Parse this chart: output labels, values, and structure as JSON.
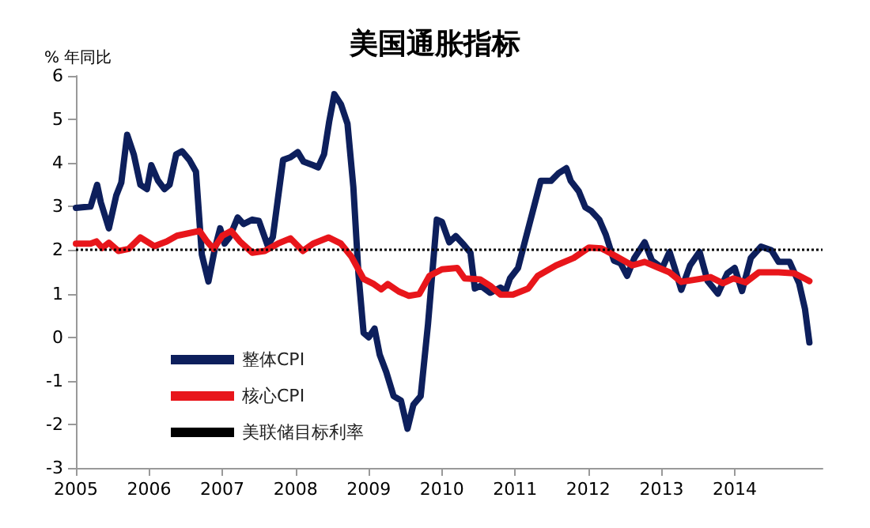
{
  "chart_data": {
    "type": "line",
    "title": "美国通胀指标",
    "ylabel": "% 年同比",
    "xlim": [
      2005,
      2015.2
    ],
    "xticks": [
      {
        "value": 2005,
        "label": "2005"
      },
      {
        "value": 2006,
        "label": "2006"
      },
      {
        "value": 2007,
        "label": "2007"
      },
      {
        "value": 2008,
        "label": "2008"
      },
      {
        "value": 2009,
        "label": "2009"
      },
      {
        "value": 2010,
        "label": "2010"
      },
      {
        "value": 2011,
        "label": "2011"
      },
      {
        "value": 2012,
        "label": "2012"
      },
      {
        "value": 2013,
        "label": "2013"
      },
      {
        "value": 2014,
        "label": "2014"
      }
    ],
    "ylim": [
      -3,
      6
    ],
    "yticks": [
      -3,
      -2,
      -1,
      0,
      1,
      2,
      3,
      4,
      5,
      6
    ],
    "series": [
      {
        "name": "整体CPI",
        "color": "#0d1f5c",
        "x": [
          2005.0,
          2005.2,
          2005.29,
          2005.34,
          2005.45,
          2005.55,
          2005.62,
          2005.7,
          2005.79,
          2005.88,
          2005.97,
          2006.03,
          2006.12,
          2006.21,
          2006.28,
          2006.37,
          2006.45,
          2006.55,
          2006.64,
          2006.72,
          2006.81,
          2006.9,
          2006.97,
          2007.03,
          2007.1,
          2007.21,
          2007.29,
          2007.41,
          2007.5,
          2007.62,
          2007.69,
          2007.83,
          2007.93,
          2008.03,
          2008.11,
          2008.24,
          2008.31,
          2008.39,
          2008.46,
          2008.53,
          2008.62,
          2008.71,
          2008.79,
          2008.86,
          2008.93,
          2009.0,
          2009.08,
          2009.15,
          2009.24,
          2009.34,
          2009.44,
          2009.53,
          2009.61,
          2009.71,
          2009.81,
          2009.93,
          2010.0,
          2010.1,
          2010.19,
          2010.3,
          2010.39,
          2010.45,
          2010.53,
          2010.66,
          2010.8,
          2010.87,
          2010.93,
          2011.04,
          2011.14,
          2011.35,
          2011.49,
          2011.59,
          2011.7,
          2011.76,
          2011.87,
          2011.96,
          2012.04,
          2012.15,
          2012.24,
          2012.35,
          2012.44,
          2012.53,
          2012.63,
          2012.77,
          2012.87,
          2013.01,
          2013.11,
          2013.18,
          2013.27,
          2013.39,
          2013.52,
          2013.63,
          2013.77,
          2013.9,
          2014.0,
          2014.1,
          2014.22,
          2014.36,
          2014.5,
          2014.6,
          2014.75,
          2014.88,
          2014.96,
          2015.02
        ],
        "values": [
          2.97,
          3.0,
          3.5,
          3.1,
          2.5,
          3.25,
          3.55,
          4.65,
          4.2,
          3.5,
          3.4,
          3.95,
          3.6,
          3.4,
          3.5,
          4.2,
          4.27,
          4.07,
          3.8,
          1.9,
          1.28,
          2.05,
          2.5,
          2.15,
          2.3,
          2.75,
          2.6,
          2.7,
          2.67,
          2.1,
          2.3,
          4.07,
          4.13,
          4.25,
          4.03,
          3.95,
          3.9,
          4.2,
          4.95,
          5.58,
          5.35,
          4.9,
          3.45,
          1.45,
          0.1,
          0.0,
          0.2,
          -0.4,
          -0.8,
          -1.35,
          -1.45,
          -2.1,
          -1.55,
          -1.35,
          0.3,
          2.7,
          2.65,
          2.18,
          2.32,
          2.12,
          1.94,
          1.12,
          1.18,
          1.02,
          1.14,
          1.06,
          1.35,
          1.59,
          2.24,
          3.59,
          3.59,
          3.76,
          3.88,
          3.59,
          3.35,
          2.98,
          2.9,
          2.7,
          2.35,
          1.76,
          1.7,
          1.41,
          1.82,
          2.18,
          1.76,
          1.59,
          1.96,
          1.59,
          1.09,
          1.65,
          1.96,
          1.29,
          1.0,
          1.47,
          1.59,
          1.06,
          1.82,
          2.08,
          2.0,
          1.73,
          1.73,
          1.24,
          0.65,
          -0.12
        ]
      },
      {
        "name": "核心CPI",
        "color": "#e8161b",
        "x": [
          2005.0,
          2005.2,
          2005.28,
          2005.36,
          2005.45,
          2005.58,
          2005.72,
          2005.88,
          2006.07,
          2006.24,
          2006.38,
          2006.52,
          2006.69,
          2006.79,
          2006.88,
          2007.0,
          2007.12,
          2007.24,
          2007.41,
          2007.58,
          2007.76,
          2007.93,
          2008.1,
          2008.24,
          2008.45,
          2008.62,
          2008.76,
          2008.93,
          2009.07,
          2009.17,
          2009.26,
          2009.41,
          2009.55,
          2009.69,
          2009.83,
          2010.0,
          2010.21,
          2010.31,
          2010.52,
          2010.66,
          2010.8,
          2010.97,
          2011.18,
          2011.31,
          2011.56,
          2011.8,
          2012.01,
          2012.18,
          2012.39,
          2012.6,
          2012.77,
          2012.94,
          2013.11,
          2013.27,
          2013.49,
          2013.67,
          2013.84,
          2013.98,
          2014.15,
          2014.33,
          2014.6,
          2014.81,
          2015.02
        ],
        "values": [
          2.15,
          2.15,
          2.2,
          2.05,
          2.17,
          1.98,
          2.03,
          2.29,
          2.09,
          2.2,
          2.33,
          2.38,
          2.44,
          2.2,
          2.03,
          2.33,
          2.44,
          2.2,
          1.94,
          1.98,
          2.15,
          2.27,
          1.98,
          2.15,
          2.29,
          2.15,
          1.86,
          1.34,
          1.22,
          1.1,
          1.22,
          1.05,
          0.95,
          0.99,
          1.41,
          1.56,
          1.59,
          1.35,
          1.33,
          1.18,
          0.98,
          0.98,
          1.12,
          1.41,
          1.65,
          1.82,
          2.06,
          2.04,
          1.85,
          1.65,
          1.73,
          1.61,
          1.49,
          1.27,
          1.33,
          1.38,
          1.24,
          1.35,
          1.26,
          1.49,
          1.49,
          1.47,
          1.29
        ]
      }
    ],
    "ref_lines": [
      {
        "axis": "y",
        "value": 2,
        "label": "美联储目标利率",
        "color": "#000000",
        "line_style": "dotted"
      }
    ],
    "legend": "bottom left",
    "grid": false,
    "marker": "none",
    "line_style": "solid"
  }
}
